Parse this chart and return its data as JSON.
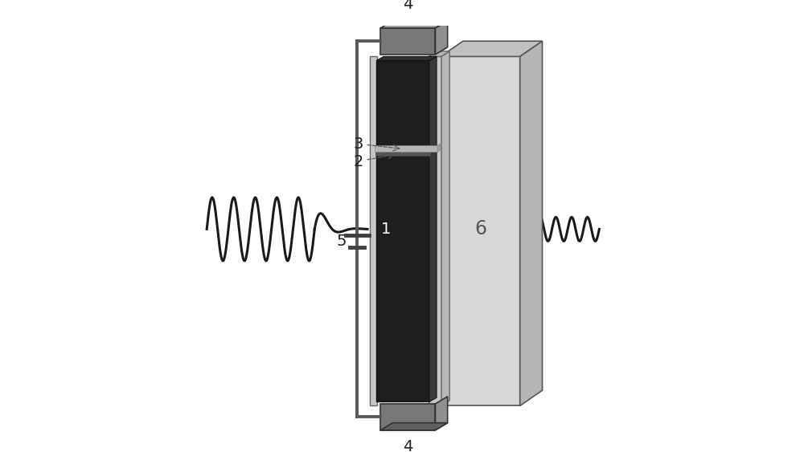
{
  "fig_width": 10.0,
  "fig_height": 5.63,
  "dpi": 100,
  "bg_color": "#ffffff",
  "wave_color": "#1a1a1a",
  "wave_lw": 2.2,
  "colors": {
    "dark_gray": "#252525",
    "mid_gray": "#707070",
    "light_gray": "#c0c0c0",
    "very_light_gray": "#dedede",
    "silver": "#b0b0b0",
    "wire": "#5a5a5a",
    "substrate_front": "#d8d8d8",
    "substrate_top": "#c0c0c0",
    "substrate_right": "#b5b5b5",
    "electrode_front": "#787878",
    "electrode_top": "#a0a0a0",
    "electrode_right": "#909090",
    "frame_color": "#b8b8b8",
    "panel_dark": "#1e1e1e",
    "panel_side": "#3a3a3a",
    "spacer": "#a8a8a8",
    "graphene_layer": "#606060"
  }
}
